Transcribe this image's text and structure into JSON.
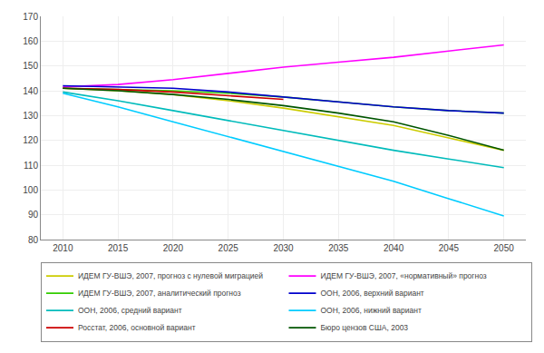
{
  "chart_data": {
    "type": "line",
    "x": [
      2010,
      2015,
      2020,
      2025,
      2030,
      2035,
      2040,
      2045,
      2050
    ],
    "series": [
      {
        "name": "ИДЕМ ГУ-ВШЭ, 2007, прогноз с нулевой миграцией",
        "color": "#CCCC00",
        "values": [
          141.0,
          140.0,
          138.5,
          136.0,
          133.0,
          129.5,
          126.0,
          121.0,
          116.0
        ]
      },
      {
        "name": "ИДЕМ ГУ-ВШЭ, 2007, «нормативный» прогноз",
        "color": "#FF00FF",
        "values": [
          141.5,
          142.5,
          144.5,
          147.0,
          149.5,
          151.5,
          153.5,
          156.0,
          158.5
        ]
      },
      {
        "name": "ИДЕМ ГУ-ВШЭ, 2007, аналитический прогноз",
        "color": "#33CC00",
        "values": [
          141.0,
          140.5,
          140.0,
          139.0,
          137.5,
          135.5,
          133.5,
          132.0,
          131.0
        ]
      },
      {
        "name": "ООН, 2006, верхний вариант",
        "color": "#0000CC",
        "values": [
          142.0,
          141.5,
          141.0,
          139.5,
          137.5,
          135.5,
          133.5,
          132.0,
          131.0
        ]
      },
      {
        "name": "ООН, 2006, средний вариант",
        "color": "#00BBBB",
        "values": [
          139.5,
          136.0,
          132.0,
          128.0,
          124.0,
          120.0,
          116.0,
          112.5,
          109.0
        ]
      },
      {
        "name": "ООН, 2006, нижний вариант",
        "color": "#00CCFF",
        "values": [
          139.0,
          133.5,
          127.5,
          121.5,
          115.5,
          109.5,
          103.5,
          96.5,
          89.5
        ]
      },
      {
        "name": "Росстат, 2006, основной вариант",
        "color": "#CC0000",
        "values": [
          141.0,
          140.5,
          139.5,
          138.0,
          136.5,
          null,
          null,
          null,
          null
        ]
      },
      {
        "name": "Бюро цензов США, 2003",
        "color": "#005500",
        "values": [
          141.0,
          140.0,
          138.5,
          136.5,
          134.0,
          131.0,
          127.5,
          122.0,
          116.0
        ]
      }
    ],
    "xlim": [
      2008,
      2052
    ],
    "ylim": [
      80,
      170
    ],
    "xticks": [
      2010,
      2015,
      2020,
      2025,
      2030,
      2035,
      2040,
      2045,
      2050
    ],
    "yticks": [
      80,
      90,
      100,
      110,
      120,
      130,
      140,
      150,
      160,
      170
    ],
    "grid": true,
    "legend": "bottom"
  }
}
